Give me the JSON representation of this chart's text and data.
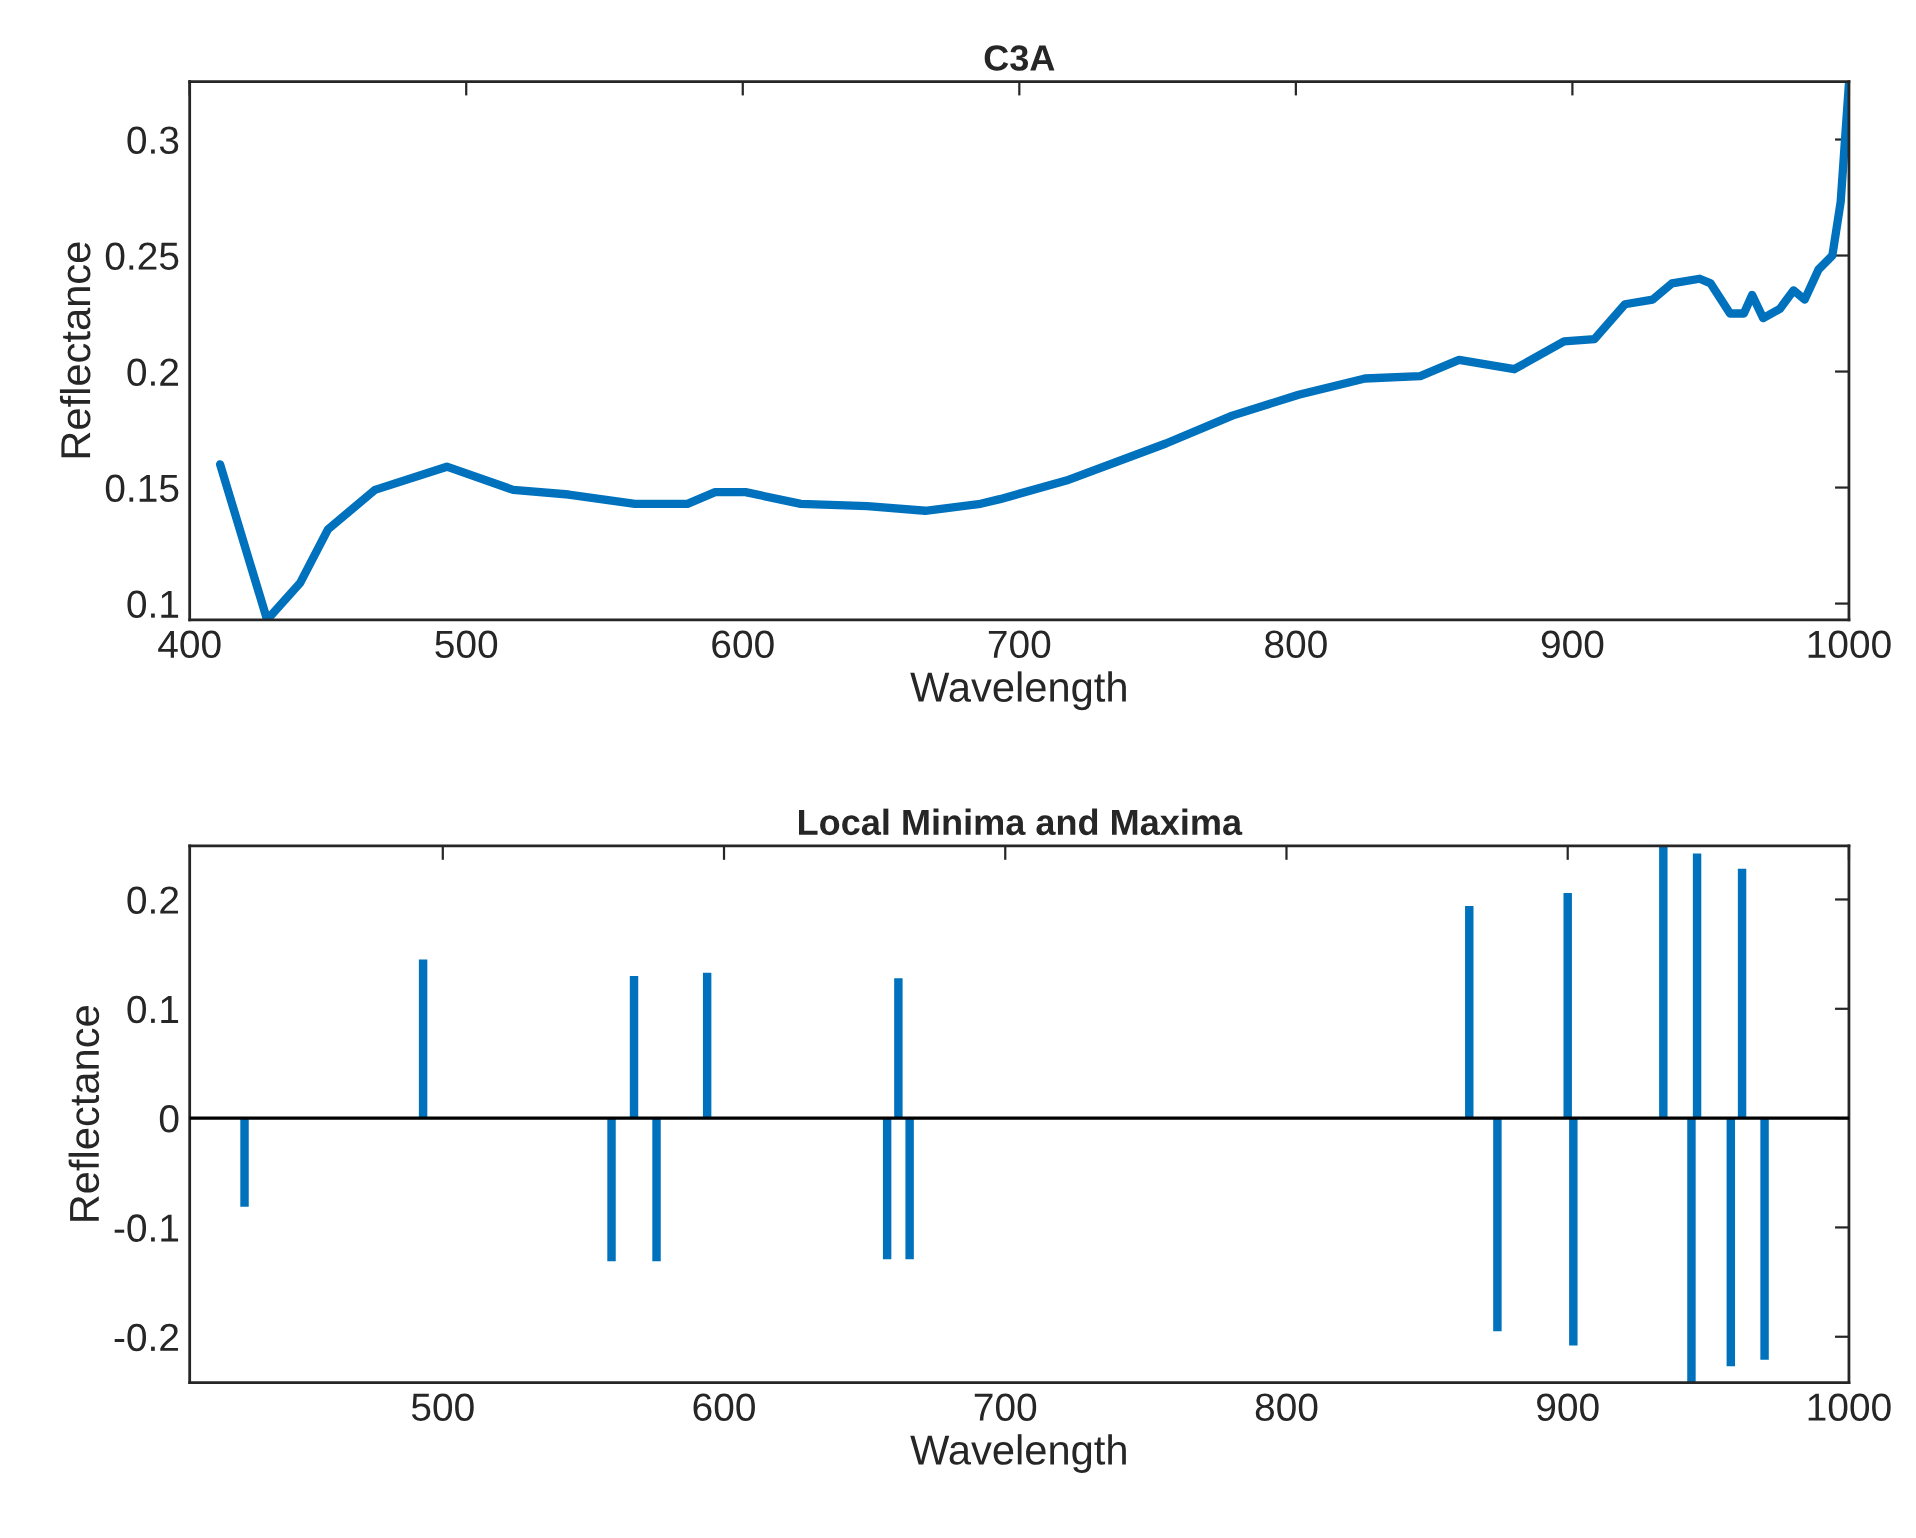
{
  "chart_data": [
    {
      "type": "line",
      "title": "C3A",
      "xlabel": "Wavelength",
      "ylabel": "Reflectance",
      "series": [
        {
          "color": "#0072bd",
          "x": [
            411,
            428,
            440,
            450,
            467,
            493,
            517,
            537,
            561,
            580,
            590,
            601,
            621,
            645,
            666,
            686,
            693,
            717,
            753,
            777,
            801,
            825,
            845,
            859,
            879,
            897,
            908,
            919,
            929,
            936,
            946,
            950,
            957,
            962,
            965,
            969,
            975,
            980,
            984,
            989,
            994,
            997,
            1000
          ],
          "values": [
            0.16,
            0.093,
            0.109,
            0.132,
            0.149,
            0.159,
            0.149,
            0.147,
            0.143,
            0.143,
            0.148,
            0.148,
            0.143,
            0.142,
            0.14,
            0.143,
            0.145,
            0.153,
            0.169,
            0.181,
            0.19,
            0.197,
            0.198,
            0.205,
            0.201,
            0.213,
            0.214,
            0.229,
            0.231,
            0.238,
            0.24,
            0.238,
            0.225,
            0.225,
            0.233,
            0.223,
            0.227,
            0.235,
            0.231,
            0.244,
            0.25,
            0.273,
            0.324
          ]
        }
      ],
      "xlim": [
        400,
        1000
      ],
      "xticks": [
        400,
        500,
        600,
        700,
        800,
        900,
        1000
      ],
      "ylim": [
        0.093,
        0.325
      ],
      "yticks": [
        0.1,
        0.15,
        0.2,
        0.25,
        0.3
      ],
      "grid": false
    },
    {
      "type": "bar",
      "title": "Local Minima and Maxima",
      "xlabel": "Wavelength",
      "ylabel": "Reflectance",
      "x": [
        429.5,
        493,
        560,
        568,
        576,
        594,
        658,
        662,
        666,
        865,
        875,
        900,
        902,
        934,
        944,
        946,
        958,
        962,
        970
      ],
      "values": [
        -0.081,
        0.145,
        -0.131,
        0.13,
        -0.131,
        0.133,
        -0.129,
        0.128,
        -0.129,
        0.194,
        -0.195,
        0.206,
        -0.208,
        0.249,
        -0.242,
        0.242,
        -0.227,
        0.228,
        -0.221
      ],
      "color": "#0072bd",
      "xlim": [
        410,
        1000
      ],
      "xticks": [
        500,
        600,
        700,
        800,
        900,
        1000
      ],
      "ylim": [
        -0.242,
        0.249
      ],
      "yticks": [
        {
          "value": -0.2,
          "label": "-0.2"
        },
        {
          "value": -0.1,
          "label": "-0.1"
        },
        0,
        0.1,
        0.2
      ],
      "ref_lines": [
        {
          "axis": "y",
          "value": 0,
          "color": "#000000"
        }
      ],
      "grid": false
    }
  ]
}
